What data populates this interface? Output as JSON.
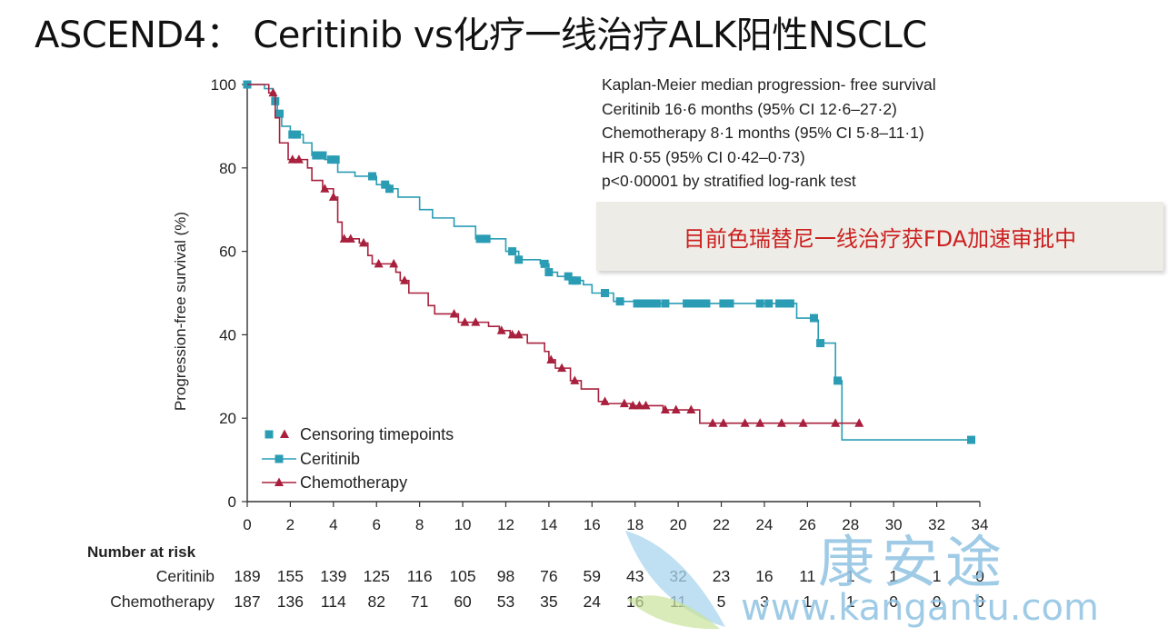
{
  "slide_title": "ASCEND4： Ceritinib vs化疗一线治疗ALK阳性NSCLC",
  "callout": "目前色瑞替尼一线治疗获FDA加速审批中",
  "km_summary": [
    "Kaplan-Meier median progression- free survival",
    "Ceritinib 16·6 months (95% CI 12·6–27·2)",
    "Chemotherapy 8·1 months (95% CI 5·8–11·1)",
    "HR 0·55 (95% CI 0·42–0·73)",
    "p<0·00001 by stratified log-rank test"
  ],
  "legend": {
    "censoring": "Censoring timepoints",
    "ceritinib": "Ceritinib",
    "chemotherapy": "Chemotherapy"
  },
  "risk_table": {
    "header": "Number at risk",
    "rows": [
      {
        "label": "Ceritinib",
        "values": [
          "189",
          "155",
          "139",
          "125",
          "116",
          "105",
          "98",
          "76",
          "59",
          "43",
          "32",
          "23",
          "16",
          "11",
          "1",
          "1",
          "1",
          "0"
        ]
      },
      {
        "label": "Chemotherapy",
        "values": [
          "187",
          "136",
          "114",
          "82",
          "71",
          "60",
          "53",
          "35",
          "24",
          "16",
          "11",
          "5",
          "3",
          "1",
          "1",
          "0",
          "0",
          "0"
        ]
      }
    ]
  },
  "watermark": {
    "text": "康安途",
    "url": "www.kangantu.com"
  },
  "colors": {
    "ceritinib": "#2a9db5",
    "chemotherapy": "#a8203d",
    "callout_text": "#cc2020"
  },
  "chart_data": {
    "type": "line",
    "xlabel": "",
    "ylabel": "Progression-free survival (%)",
    "xlim": [
      0,
      34
    ],
    "ylim": [
      0,
      100
    ],
    "xticks": [
      0,
      2,
      4,
      6,
      8,
      10,
      12,
      14,
      16,
      18,
      20,
      22,
      24,
      26,
      28,
      30,
      32,
      34
    ],
    "yticks": [
      0,
      20,
      40,
      60,
      80,
      100
    ],
    "legend_position": "bottom-left",
    "series": [
      {
        "name": "Ceritinib",
        "marker": "square",
        "step": [
          [
            0,
            100
          ],
          [
            0.8,
            99
          ],
          [
            1.2,
            96
          ],
          [
            1.4,
            93
          ],
          [
            1.6,
            90
          ],
          [
            2,
            88
          ],
          [
            2.6,
            86
          ],
          [
            3,
            83
          ],
          [
            3.6,
            82
          ],
          [
            4.2,
            79
          ],
          [
            5,
            78
          ],
          [
            6,
            76
          ],
          [
            6.6,
            75
          ],
          [
            7,
            73
          ],
          [
            8,
            70
          ],
          [
            8.6,
            68
          ],
          [
            9.6,
            66
          ],
          [
            10.6,
            63
          ],
          [
            12,
            60
          ],
          [
            12.6,
            58
          ],
          [
            13.6,
            57
          ],
          [
            14,
            55
          ],
          [
            14.4,
            54
          ],
          [
            15,
            53
          ],
          [
            15.6,
            52
          ],
          [
            16,
            50
          ],
          [
            17,
            48
          ],
          [
            18,
            47.5
          ],
          [
            25.4,
            47.5
          ],
          [
            25.5,
            44
          ],
          [
            26.4,
            43.5
          ],
          [
            26.5,
            38
          ],
          [
            27,
            38
          ],
          [
            27.3,
            29
          ],
          [
            27.5,
            29
          ],
          [
            27.6,
            14.8
          ],
          [
            33.6,
            14.8
          ]
        ],
        "censor_x": [
          0,
          1.3,
          1.5,
          2.1,
          2.3,
          3.2,
          3.5,
          3.9,
          4.1,
          5.8,
          6.4,
          6.6,
          10.8,
          11.1,
          12.3,
          12.6,
          13.8,
          14.0,
          14.9,
          15.1,
          15.3,
          16.6,
          17.3,
          18.1,
          18.4,
          18.7,
          19.0,
          19.4,
          20.4,
          20.7,
          21.0,
          21.3,
          22.1,
          22.4,
          23.8,
          24.2,
          24.7,
          25.0,
          25.2,
          26.3,
          26.6,
          27.4,
          33.6
        ]
      },
      {
        "name": "Chemotherapy",
        "marker": "triangle",
        "step": [
          [
            0,
            100
          ],
          [
            1,
            98
          ],
          [
            1.3,
            92
          ],
          [
            1.5,
            86
          ],
          [
            1.9,
            82
          ],
          [
            2.8,
            80
          ],
          [
            3,
            77
          ],
          [
            3.5,
            75
          ],
          [
            4,
            73
          ],
          [
            4.2,
            67
          ],
          [
            4.4,
            63
          ],
          [
            5.2,
            62
          ],
          [
            5.6,
            59
          ],
          [
            5.8,
            57
          ],
          [
            6.9,
            55
          ],
          [
            7.1,
            53
          ],
          [
            7.5,
            50
          ],
          [
            8.4,
            47
          ],
          [
            8.7,
            45
          ],
          [
            9.8,
            43
          ],
          [
            11.2,
            42
          ],
          [
            11.7,
            41
          ],
          [
            12.2,
            40
          ],
          [
            13,
            38
          ],
          [
            13.8,
            36
          ],
          [
            14,
            34
          ],
          [
            14.3,
            32
          ],
          [
            15,
            29
          ],
          [
            15.5,
            27
          ],
          [
            16.3,
            24
          ],
          [
            16.7,
            23.5
          ],
          [
            17.8,
            23
          ],
          [
            19.3,
            22
          ],
          [
            21,
            18.8
          ],
          [
            28.4,
            18.8
          ]
        ],
        "censor_x": [
          1.2,
          2.1,
          2.4,
          3.6,
          4.0,
          4.5,
          4.8,
          5.4,
          6.1,
          6.8,
          7.3,
          9.6,
          10.1,
          10.6,
          11.8,
          12.3,
          12.6,
          14.1,
          14.6,
          15.2,
          16.6,
          17.5,
          17.9,
          18.2,
          18.5,
          19.4,
          19.9,
          20.6,
          21.6,
          22.1,
          23.1,
          23.8,
          24.8,
          25.8,
          27.3,
          28.4
        ]
      }
    ]
  }
}
